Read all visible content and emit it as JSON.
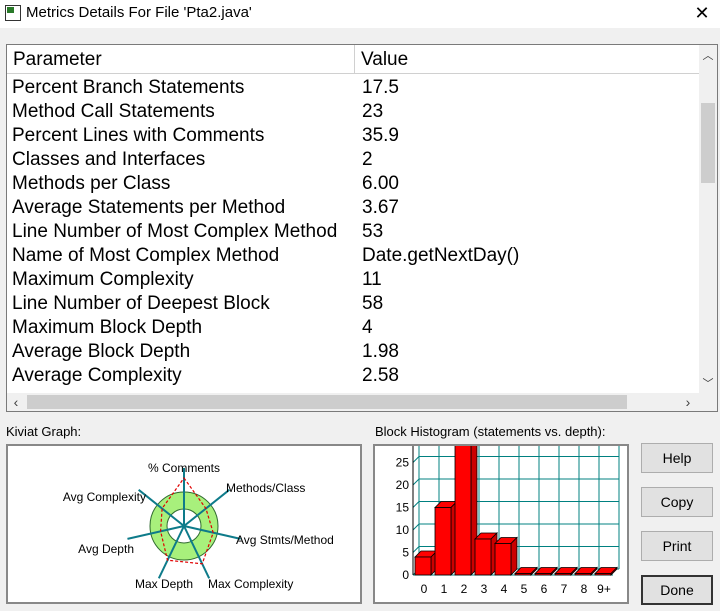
{
  "window": {
    "title": "Metrics Details For File 'Pta2.java'",
    "close_glyph": "✕"
  },
  "table": {
    "headers": {
      "parameter": "Parameter",
      "value": "Value"
    },
    "rows": [
      {
        "parameter": "Percent Branch Statements",
        "value": "17.5"
      },
      {
        "parameter": "Method Call Statements",
        "value": "23"
      },
      {
        "parameter": "Percent Lines with Comments",
        "value": "35.9"
      },
      {
        "parameter": "Classes and Interfaces",
        "value": "2"
      },
      {
        "parameter": "Methods per Class",
        "value": "6.00"
      },
      {
        "parameter": "Average Statements per Method",
        "value": "3.67"
      },
      {
        "parameter": "Line Number of Most Complex Method",
        "value": "53"
      },
      {
        "parameter": "Name of Most Complex Method",
        "value": "Date.getNextDay()"
      },
      {
        "parameter": "Maximum Complexity",
        "value": "11"
      },
      {
        "parameter": "Line Number of Deepest Block",
        "value": "58"
      },
      {
        "parameter": "Maximum Block Depth",
        "value": "4"
      },
      {
        "parameter": "Average Block Depth",
        "value": "1.98"
      },
      {
        "parameter": "Average Complexity",
        "value": "2.58"
      }
    ]
  },
  "kiviat": {
    "label": "Kiviat Graph:",
    "axes": [
      "% Comments",
      "Methods/Class",
      "Avg Stmts/Method",
      "Max Complexity",
      "Max Depth",
      "Avg Depth",
      "Avg Complexity"
    ],
    "colors": {
      "ring_fill": "#a8f07c",
      "axis": "#0e7b8a",
      "value_line": "#e00000"
    }
  },
  "chart_data": {
    "type": "bar",
    "title": "Block Histogram (statements vs. depth):",
    "categories": [
      "0",
      "1",
      "2",
      "3",
      "4",
      "5",
      "6",
      "7",
      "8",
      "9+"
    ],
    "values": [
      4,
      15,
      30,
      8,
      7,
      0,
      0,
      0,
      0,
      0
    ],
    "y_ticks": [
      "0",
      "5",
      "10",
      "15",
      "20",
      "25"
    ],
    "ylim": [
      0,
      30
    ],
    "bar_color": "#ff0000",
    "grid_color": "#008080"
  },
  "buttons": {
    "help": "Help",
    "copy": "Copy",
    "print": "Print",
    "done": "Done"
  }
}
